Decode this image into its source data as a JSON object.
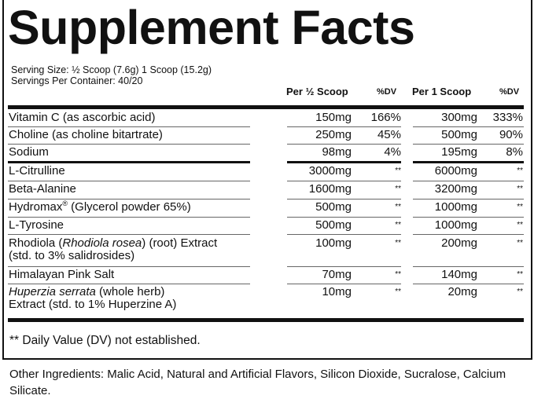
{
  "title": "Supplement Facts",
  "serving_size": "Serving Size: ½ Scoop (7.6g) 1 Scoop (15.2g)",
  "servings_per_container": "Servings Per Container: 40/20",
  "headers": {
    "amount_half": "Per ½ Scoop",
    "dv_half": "%DV",
    "amount_one": "Per 1 Scoop",
    "dv_one": "%DV"
  },
  "rows": [
    {
      "name": [
        {
          "t": "Vitamin C (as ascorbic acid)"
        }
      ],
      "amount_half": "150mg",
      "dv_half": "166%",
      "amount_one": "300mg",
      "dv_one": "333%"
    },
    {
      "name": [
        {
          "t": "Choline (as choline bitartrate)"
        }
      ],
      "amount_half": "250mg",
      "dv_half": "45%",
      "amount_one": "500mg",
      "dv_one": "90%"
    },
    {
      "name": [
        {
          "t": "Sodium"
        }
      ],
      "amount_half": "98mg",
      "dv_half": "4%",
      "amount_one": "195mg",
      "dv_one": "8%"
    },
    {
      "name": [
        {
          "t": "L-Citrulline"
        }
      ],
      "amount_half": "3000mg",
      "dv_half": "**",
      "amount_one": "6000mg",
      "dv_one": "**"
    },
    {
      "name": [
        {
          "t": "Beta-Alanine"
        }
      ],
      "amount_half": "1600mg",
      "dv_half": "**",
      "amount_one": "3200mg",
      "dv_one": "**"
    },
    {
      "name": [
        {
          "t": "Hydromax"
        },
        {
          "t": "®",
          "sup": true
        },
        {
          "t": " (Glycerol powder 65%)"
        }
      ],
      "amount_half": "500mg",
      "dv_half": "**",
      "amount_one": "1000mg",
      "dv_one": "**"
    },
    {
      "name": [
        {
          "t": "L-Tyrosine"
        }
      ],
      "amount_half": "500mg",
      "dv_half": "**",
      "amount_one": "1000mg",
      "dv_one": "**"
    },
    {
      "name": [
        {
          "t": "Rhodiola ("
        },
        {
          "t": "Rhodiola rosea",
          "i": true
        },
        {
          "t": ") (root) Extract"
        },
        {
          "br": true
        },
        {
          "t": "(std. to 3% salidrosides)"
        }
      ],
      "amount_half": "100mg",
      "dv_half": "**",
      "amount_one": "200mg",
      "dv_one": "**"
    },
    {
      "name": [
        {
          "t": "Himalayan Pink Salt"
        }
      ],
      "amount_half": "70mg",
      "dv_half": "**",
      "amount_one": "140mg",
      "dv_one": "**"
    },
    {
      "name": [
        {
          "t": "Huperzia serrata",
          "i": true
        },
        {
          "t": " (whole herb)"
        },
        {
          "br": true
        },
        {
          "t": "Extract (std. to 1% Huperzine A)"
        }
      ],
      "amount_half": "10mg",
      "dv_half": "**",
      "amount_one": "20mg",
      "dv_one": "**"
    }
  ],
  "footnote": "** Daily Value (DV) not established.",
  "other_ingredients": "Other Ingredients: Malic Acid, Natural and Artificial Flavors, Silicon Dioxide, Sucralose, Calcium Silicate."
}
